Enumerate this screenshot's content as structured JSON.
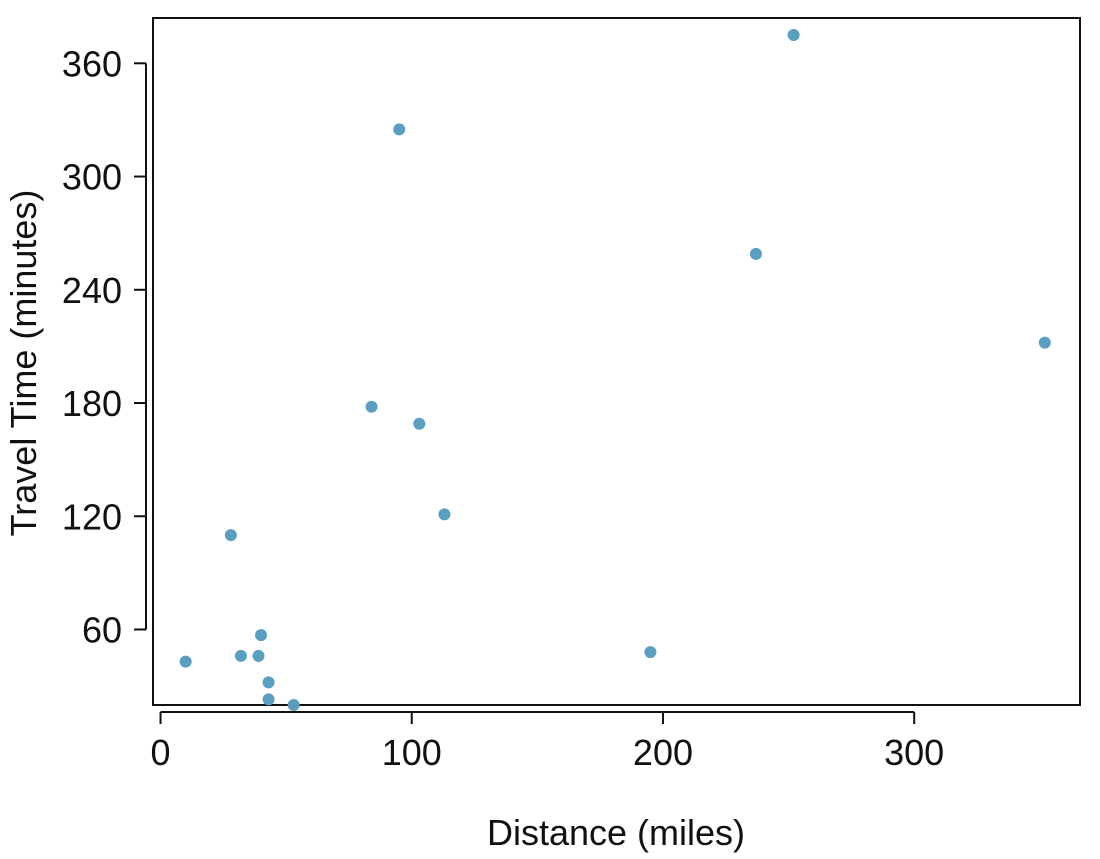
{
  "chart_data": {
    "type": "scatter",
    "title": "",
    "xlabel": "Distance (miles)",
    "ylabel": "Travel Time (minutes)",
    "xlim": [
      -3,
      366
    ],
    "ylim": [
      20,
      384
    ],
    "xticks": [
      0,
      100,
      200,
      300
    ],
    "yticks": [
      60,
      120,
      180,
      240,
      300,
      360
    ],
    "grid": false,
    "legend": "none",
    "marker_color": "#5a9ec0",
    "series": [
      {
        "x": [
          10,
          28,
          32,
          39,
          40,
          43,
          43,
          53,
          84,
          95,
          103,
          113,
          195,
          237,
          252,
          352
        ],
        "y": [
          43,
          110,
          46,
          46,
          57,
          32,
          23,
          20,
          178,
          325,
          169,
          121,
          48,
          259,
          375,
          212
        ]
      }
    ]
  }
}
